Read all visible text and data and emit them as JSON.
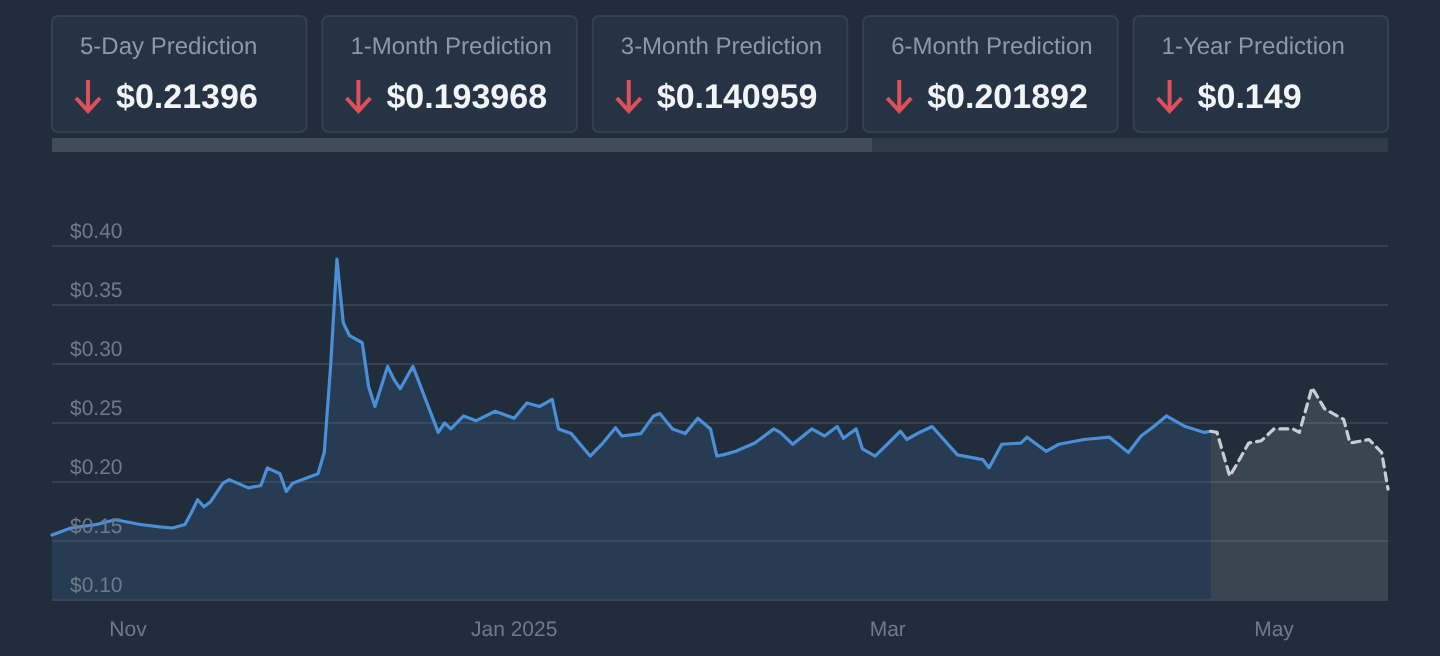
{
  "chart_data": [
    {
      "type": "other",
      "categories": [
        "5-Day Prediction",
        "1-Month Prediction",
        "3-Month Prediction",
        "6-Month Prediction",
        "1-Year Prediction"
      ],
      "value_labels": [
        "$0.21396",
        "$0.193968",
        "$0.140959",
        "$0.201892",
        "$0.149"
      ]
    },
    {
      "type": "area",
      "xlim": [
        "2024-10-20",
        "2025-05-19"
      ],
      "ylim": [
        0.1,
        0.4
      ],
      "xticks": [
        {
          "value": "2024-11-01",
          "label": "Nov"
        },
        {
          "value": "2025-01-01",
          "label": "Jan 2025"
        },
        {
          "value": "2025-03-01",
          "label": "Mar"
        },
        {
          "value": "2025-05-01",
          "label": "May"
        }
      ],
      "yticks": [
        {
          "value": 0.1,
          "label": "$0.10"
        },
        {
          "value": 0.15,
          "label": "$0.15"
        },
        {
          "value": 0.2,
          "label": "$0.20"
        },
        {
          "value": 0.25,
          "label": "$0.25"
        },
        {
          "value": 0.3,
          "label": "$0.30"
        },
        {
          "value": 0.35,
          "label": "$0.35"
        },
        {
          "value": 0.4,
          "label": "$0.40"
        }
      ],
      "grid": "y",
      "series": [
        {
          "color": "#4a8fd8",
          "line_style": "solid",
          "x": [
            "2024-10-20",
            "2024-10-23",
            "2024-10-27",
            "2024-10-30",
            "2024-11-03",
            "2024-11-06",
            "2024-11-08",
            "2024-11-10",
            "2024-11-11",
            "2024-11-12",
            "2024-11-13",
            "2024-11-14",
            "2024-11-16",
            "2024-11-17",
            "2024-11-20",
            "2024-11-22",
            "2024-11-23",
            "2024-11-25",
            "2024-11-26",
            "2024-11-27",
            "2024-12-01",
            "2024-12-02",
            "2024-12-03",
            "2024-12-04",
            "2024-12-05",
            "2024-12-06",
            "2024-12-08",
            "2024-12-09",
            "2024-12-10",
            "2024-12-12",
            "2024-12-13",
            "2024-12-14",
            "2024-12-16",
            "2024-12-18",
            "2024-12-20",
            "2024-12-21",
            "2024-12-22",
            "2024-12-24",
            "2024-12-26",
            "2024-12-29",
            "2025-01-01",
            "2025-01-03",
            "2025-01-05",
            "2025-01-07",
            "2025-01-08",
            "2025-01-10",
            "2025-01-13",
            "2025-01-15",
            "2025-01-17",
            "2025-01-18",
            "2025-01-21",
            "2025-01-23",
            "2025-01-24",
            "2025-01-26",
            "2025-01-28",
            "2025-01-30",
            "2025-02-01",
            "2025-02-02",
            "2025-02-03",
            "2025-02-05",
            "2025-02-08",
            "2025-02-11",
            "2025-02-12",
            "2025-02-14",
            "2025-02-17",
            "2025-02-19",
            "2025-02-21",
            "2025-02-22",
            "2025-02-24",
            "2025-02-25",
            "2025-02-27",
            "2025-03-03",
            "2025-03-04",
            "2025-03-06",
            "2025-03-08",
            "2025-03-12",
            "2025-03-16",
            "2025-03-17",
            "2025-03-19",
            "2025-03-22",
            "2025-03-23",
            "2025-03-26",
            "2025-03-28",
            "2025-04-01",
            "2025-04-05",
            "2025-04-08",
            "2025-04-10",
            "2025-04-12",
            "2025-04-14",
            "2025-04-17",
            "2025-04-20",
            "2025-04-21"
          ],
          "values": [
            0.155,
            0.161,
            0.164,
            0.168,
            0.164,
            0.162,
            0.161,
            0.164,
            0.174,
            0.185,
            0.179,
            0.183,
            0.199,
            0.202,
            0.195,
            0.197,
            0.212,
            0.207,
            0.192,
            0.199,
            0.207,
            0.225,
            0.298,
            0.389,
            0.335,
            0.324,
            0.318,
            0.281,
            0.264,
            0.298,
            0.287,
            0.279,
            0.298,
            0.27,
            0.242,
            0.25,
            0.245,
            0.256,
            0.252,
            0.26,
            0.254,
            0.267,
            0.264,
            0.27,
            0.245,
            0.241,
            0.222,
            0.233,
            0.246,
            0.239,
            0.241,
            0.256,
            0.258,
            0.245,
            0.241,
            0.254,
            0.245,
            0.222,
            0.223,
            0.226,
            0.233,
            0.245,
            0.242,
            0.232,
            0.245,
            0.239,
            0.247,
            0.237,
            0.245,
            0.228,
            0.222,
            0.243,
            0.236,
            0.242,
            0.247,
            0.223,
            0.219,
            0.212,
            0.232,
            0.233,
            0.238,
            0.226,
            0.232,
            0.236,
            0.238,
            0.225,
            0.239,
            0.247,
            0.256,
            0.247,
            0.242,
            0.243
          ]
        },
        {
          "color": "#c8cdd4",
          "line_style": "dashed",
          "x": [
            "2025-04-21",
            "2025-04-22",
            "2025-04-24",
            "2025-04-25",
            "2025-04-27",
            "2025-04-29",
            "2025-05-01",
            "2025-05-04",
            "2025-05-05",
            "2025-05-07",
            "2025-05-09",
            "2025-05-12",
            "2025-05-13",
            "2025-05-16",
            "2025-05-18",
            "2025-05-19"
          ],
          "values": [
            0.243,
            0.242,
            0.205,
            0.214,
            0.233,
            0.235,
            0.245,
            0.245,
            0.242,
            0.28,
            0.262,
            0.253,
            0.233,
            0.236,
            0.225,
            0.194
          ]
        }
      ]
    }
  ]
}
